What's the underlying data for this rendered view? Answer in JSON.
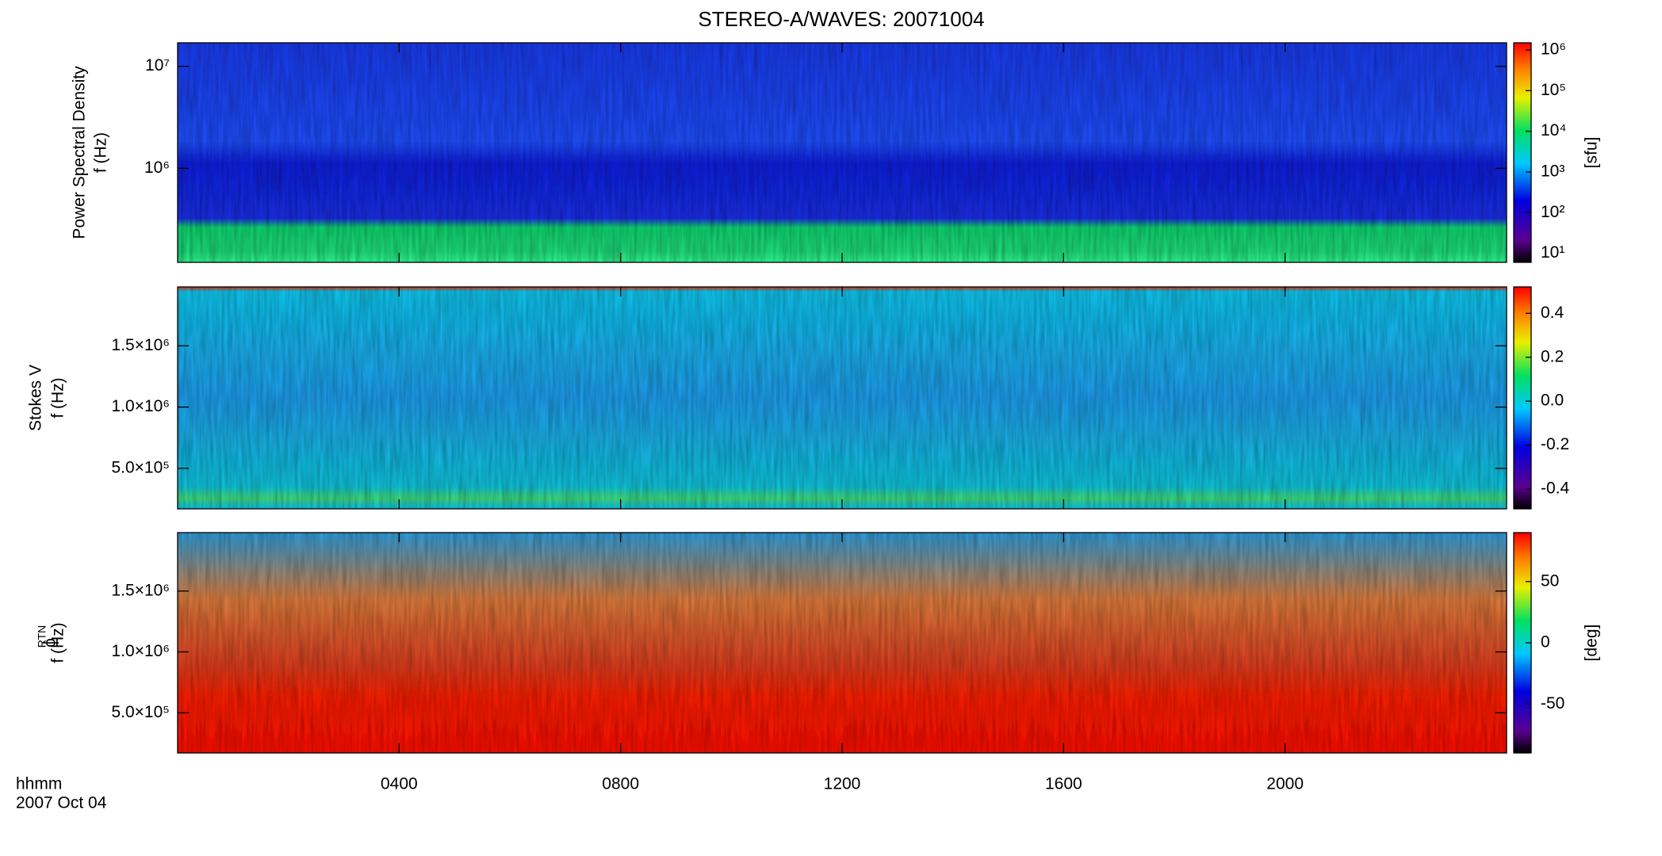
{
  "chart_data": [
    {
      "type": "spectrogram",
      "title": "STEREO-A/WAVES: 20071004",
      "ylabel": "Power Spectral Density",
      "ylabel2": "f (Hz)",
      "ylog": true,
      "ylim": [
        120000,
        17000000
      ],
      "yticks": [
        {
          "value": 1000000,
          "label": "10⁶"
        },
        {
          "value": 10000000,
          "label": "10⁷"
        }
      ],
      "clog": true,
      "clim": [
        6,
        1500000
      ],
      "cticks": [
        {
          "value": 10,
          "label": "10¹"
        },
        {
          "value": 100,
          "label": "10²"
        },
        {
          "value": 1000,
          "label": "10³"
        },
        {
          "value": 10000,
          "label": "10⁴"
        },
        {
          "value": 100000,
          "label": "10⁵"
        },
        {
          "value": 1000000,
          "label": "10⁶"
        }
      ],
      "clabel": "[sfu]"
    },
    {
      "type": "spectrogram",
      "ylabel": "Stokes V",
      "ylabel2": "f (Hz)",
      "ylog": false,
      "ylim": [
        170000,
        1980000
      ],
      "yticks": [
        {
          "value": 500000,
          "label": "5.0×10⁵"
        },
        {
          "value": 1000000,
          "label": "1.0×10⁶"
        },
        {
          "value": 1500000,
          "label": "1.5×10⁶"
        }
      ],
      "clog": false,
      "clim": [
        -0.49,
        0.52
      ],
      "cticks": [
        -0.4,
        -0.2,
        {
          "value": 0,
          "label": "0.0"
        },
        0.2,
        0.4
      ]
    },
    {
      "type": "spectrogram",
      "ylabel": "ϕ",
      "ylabel_sub": "RTN",
      "ylabel2": "f (Hz)",
      "ylog": false,
      "ylim": [
        170000,
        1980000
      ],
      "yticks": [
        {
          "value": 500000,
          "label": "5.0×10⁵"
        },
        {
          "value": 1000000,
          "label": "1.0×10⁶"
        },
        {
          "value": 1500000,
          "label": "1.5×10⁶"
        }
      ],
      "clog": false,
      "clim": [
        -90,
        90
      ],
      "cticks": [
        -50,
        0,
        50
      ],
      "clabel": "[deg]",
      "xlabel": "hhmm",
      "date_label": "2007 Oct 04",
      "xlim": [
        0,
        24
      ],
      "xticks": [
        {
          "value": 4,
          "label": "0400"
        },
        {
          "value": 8,
          "label": "0800"
        },
        {
          "value": 12,
          "label": "1200"
        },
        {
          "value": 16,
          "label": "1600"
        },
        {
          "value": 20,
          "label": "2000"
        }
      ]
    }
  ]
}
